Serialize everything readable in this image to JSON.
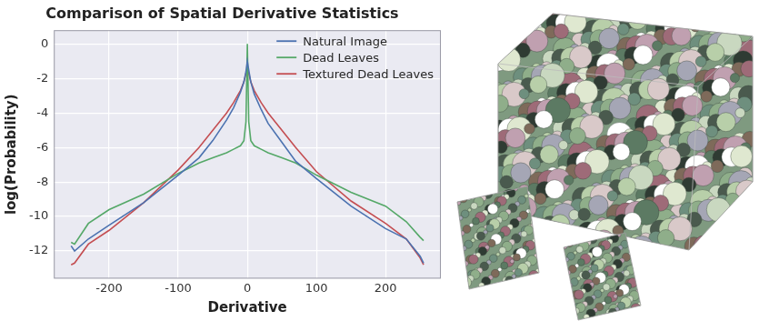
{
  "chart_data": {
    "type": "line",
    "title": "Comparison of Spatial Derivative Statistics",
    "x_label": "Derivative",
    "y_label": "log(Probability)",
    "x": [
      -255,
      -250,
      -230,
      -200,
      -150,
      -100,
      -70,
      -50,
      -30,
      -20,
      -10,
      -5,
      -2,
      0,
      2,
      5,
      10,
      20,
      30,
      50,
      70,
      100,
      150,
      200,
      230,
      250,
      255
    ],
    "series": [
      {
        "name": "Natural Image",
        "color": "#4c72b0",
        "values": [
          -11.7,
          -12.0,
          -11.3,
          -10.5,
          -9.2,
          -7.6,
          -6.6,
          -5.6,
          -4.4,
          -3.7,
          -2.8,
          -2.2,
          -1.6,
          -1.0,
          -1.5,
          -2.2,
          -2.9,
          -3.8,
          -4.6,
          -5.7,
          -6.8,
          -7.8,
          -9.4,
          -10.7,
          -11.3,
          -12.3,
          -12.7
        ]
      },
      {
        "name": "Dead Leaves",
        "color": "#55a868",
        "values": [
          -11.5,
          -11.6,
          -10.4,
          -9.6,
          -8.7,
          -7.5,
          -6.9,
          -6.6,
          -6.3,
          -6.1,
          -5.9,
          -5.6,
          -4.5,
          0.0,
          -4.5,
          -5.6,
          -5.9,
          -6.1,
          -6.3,
          -6.6,
          -6.9,
          -7.6,
          -8.6,
          -9.4,
          -10.3,
          -11.2,
          -11.4
        ]
      },
      {
        "name": "Textured Dead Leaves",
        "color": "#c44e52",
        "values": [
          -12.8,
          -12.7,
          -11.6,
          -10.8,
          -9.2,
          -7.3,
          -6.0,
          -5.0,
          -4.0,
          -3.4,
          -2.7,
          -2.2,
          -1.7,
          -1.4,
          -1.7,
          -2.2,
          -2.7,
          -3.4,
          -4.0,
          -5.0,
          -6.0,
          -7.4,
          -9.1,
          -10.4,
          -11.3,
          -12.4,
          -12.8
        ]
      }
    ],
    "xlim": [
      -280,
      280
    ],
    "xticks": [
      -200,
      -100,
      0,
      100,
      200
    ],
    "ylim": [
      -13.6,
      0.8
    ],
    "yticks": [
      -12,
      -10,
      -8,
      -6,
      -4,
      -2,
      0
    ],
    "grid": true,
    "legend": "upper right"
  }
}
